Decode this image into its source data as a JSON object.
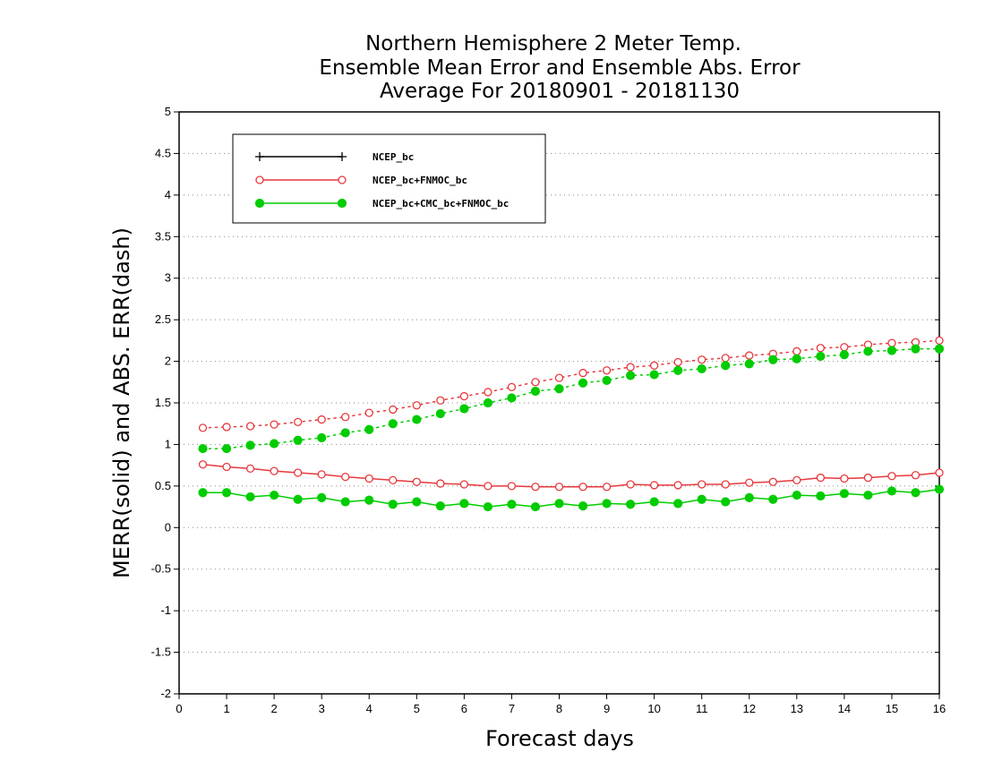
{
  "chart_data": {
    "type": "line",
    "title": [
      "Northern Hemisphere 2 Meter Temp.",
      "Ensemble Mean Error and Ensemble Abs. Error",
      "Average For 20180901 - 20181130"
    ],
    "xlabel": "Forecast days",
    "ylabel": "MERR(solid) and ABS. ERR(dash)",
    "xlim": [
      0,
      16
    ],
    "ylim": [
      -2,
      5
    ],
    "xticks": [
      "0",
      "1",
      "2",
      "3",
      "4",
      "5",
      "6",
      "7",
      "8",
      "9",
      "10",
      "11",
      "12",
      "13",
      "14",
      "15",
      "16"
    ],
    "yticks": [
      "5",
      "4.5",
      "4",
      "3.5",
      "3",
      "2.5",
      "2",
      "1.5",
      "1",
      "0.5",
      "0",
      "-0.5",
      "-1",
      "-1.5",
      "-2"
    ],
    "grid": true,
    "legend_position": "top-left",
    "x": [
      0.5,
      1,
      1.5,
      2,
      2.5,
      3,
      3.5,
      4,
      4.5,
      5,
      5.5,
      6,
      6.5,
      7,
      7.5,
      8,
      8.5,
      9,
      9.5,
      10,
      10.5,
      11,
      11.5,
      12,
      12.5,
      13,
      13.5,
      14,
      14.5,
      15,
      15.5,
      16
    ],
    "series": [
      {
        "name": "NCEP_bc",
        "color": "#000000",
        "marker": "plus",
        "merr": [],
        "abs_err": []
      },
      {
        "name": "NCEP_bc+FNMOC_bc",
        "color": "#e8383d",
        "marker": "open-circle",
        "merr": [
          0.76,
          0.73,
          0.71,
          0.68,
          0.66,
          0.64,
          0.61,
          0.59,
          0.57,
          0.55,
          0.53,
          0.52,
          0.5,
          0.5,
          0.49,
          0.49,
          0.49,
          0.49,
          0.52,
          0.51,
          0.51,
          0.52,
          0.52,
          0.54,
          0.55,
          0.57,
          0.6,
          0.59,
          0.6,
          0.62,
          0.63,
          0.66
        ],
        "abs_err": [
          1.2,
          1.21,
          1.22,
          1.24,
          1.27,
          1.3,
          1.33,
          1.38,
          1.42,
          1.47,
          1.53,
          1.58,
          1.63,
          1.69,
          1.75,
          1.8,
          1.86,
          1.89,
          1.93,
          1.95,
          1.99,
          2.02,
          2.04,
          2.07,
          2.09,
          2.12,
          2.16,
          2.17,
          2.2,
          2.22,
          2.23,
          2.25
        ]
      },
      {
        "name": "NCEP_bc+CMC_bc+FNMOC_bc",
        "color": "#00cc00",
        "marker": "filled-circle",
        "merr": [
          0.42,
          0.42,
          0.37,
          0.39,
          0.34,
          0.36,
          0.31,
          0.33,
          0.28,
          0.31,
          0.26,
          0.29,
          0.25,
          0.28,
          0.25,
          0.29,
          0.26,
          0.29,
          0.28,
          0.31,
          0.29,
          0.34,
          0.31,
          0.36,
          0.34,
          0.39,
          0.38,
          0.41,
          0.39,
          0.44,
          0.42,
          0.46
        ],
        "abs_err": [
          0.95,
          0.95,
          0.99,
          1.01,
          1.05,
          1.08,
          1.14,
          1.18,
          1.25,
          1.3,
          1.37,
          1.43,
          1.5,
          1.56,
          1.64,
          1.67,
          1.74,
          1.77,
          1.83,
          1.84,
          1.89,
          1.91,
          1.95,
          1.97,
          2.02,
          2.03,
          2.06,
          2.08,
          2.12,
          2.13,
          2.15,
          2.15
        ]
      }
    ]
  }
}
